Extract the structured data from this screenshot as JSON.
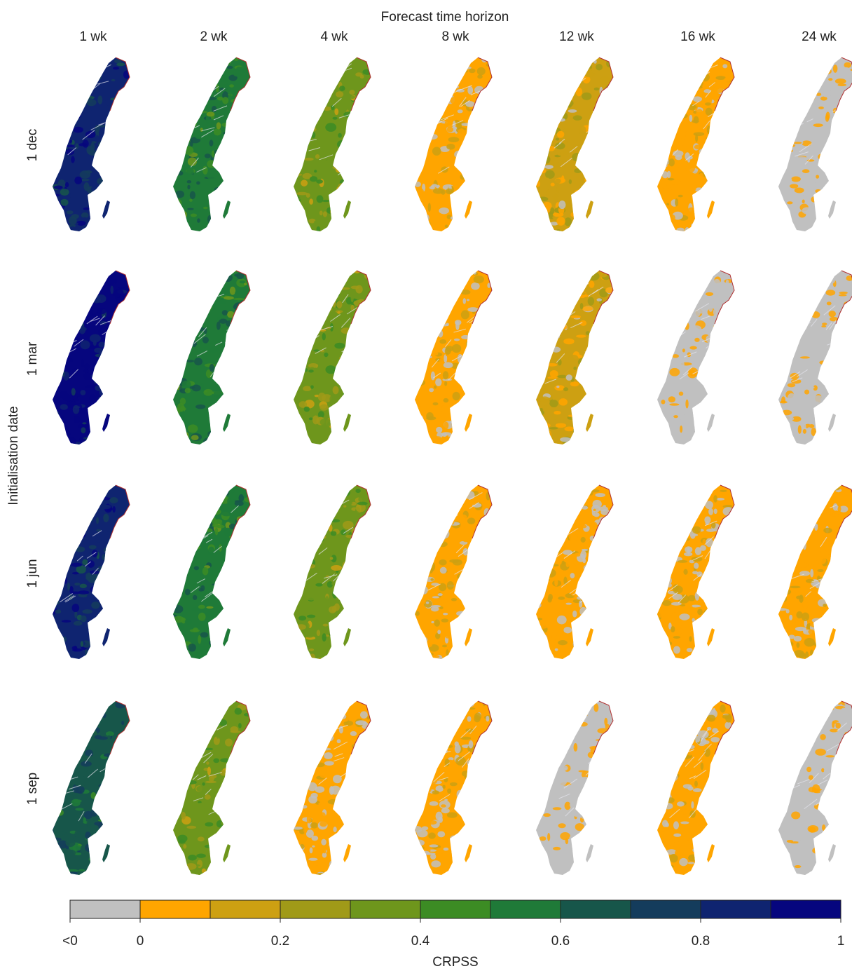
{
  "figure": {
    "column_axis_title": "Forecast time horizon",
    "row_axis_title": "Initialisation date",
    "columns": [
      "1 wk",
      "2 wk",
      "4 wk",
      "8 wk",
      "12 wk",
      "16 wk",
      "24 wk"
    ],
    "rows": [
      "1 dec",
      "1 mar",
      "1 jun",
      "1 sep"
    ],
    "region": "Sweden",
    "dominant_class_per_panel": [
      [
        "0.8-0.9",
        "0.5-0.6",
        "0.3-0.4",
        "0-0.1",
        "0.1-0.2",
        "0-0.1",
        "<0"
      ],
      [
        "0.9-1",
        "0.5-0.6",
        "0.3-0.4",
        "0-0.1",
        "0.1-0.2",
        "<0",
        "<0"
      ],
      [
        "0.8-0.9",
        "0.5-0.6",
        "0.3-0.4",
        "0-0.1",
        "0-0.1",
        "0-0.1",
        "0-0.1"
      ],
      [
        "0.6-0.7",
        "0.3-0.4",
        "0-0.1",
        "0-0.1",
        "<0",
        "0-0.1",
        "<0"
      ]
    ]
  },
  "colorbar": {
    "title": "CRPSS",
    "tick_labels": [
      "<0",
      "0",
      "0.2",
      "0.4",
      "0.6",
      "0.8",
      "1"
    ],
    "classes": [
      {
        "range": "<0",
        "color": "#c0c0c0"
      },
      {
        "range": "0-0.1",
        "color": "#ffa500"
      },
      {
        "range": "0.1-0.2",
        "color": "#cda012"
      },
      {
        "range": "0.2-0.3",
        "color": "#a09a18"
      },
      {
        "range": "0.3-0.4",
        "color": "#6e961c"
      },
      {
        "range": "0.4-0.5",
        "color": "#3c8c24"
      },
      {
        "range": "0.5-0.6",
        "color": "#1f7a38"
      },
      {
        "range": "0.6-0.7",
        "color": "#17564a"
      },
      {
        "range": "0.7-0.8",
        "color": "#143c5c"
      },
      {
        "range": "0.8-0.9",
        "color": "#0f2470"
      },
      {
        "range": "0.9-1",
        "color": "#06067e"
      }
    ],
    "border_color": "#b03030"
  }
}
